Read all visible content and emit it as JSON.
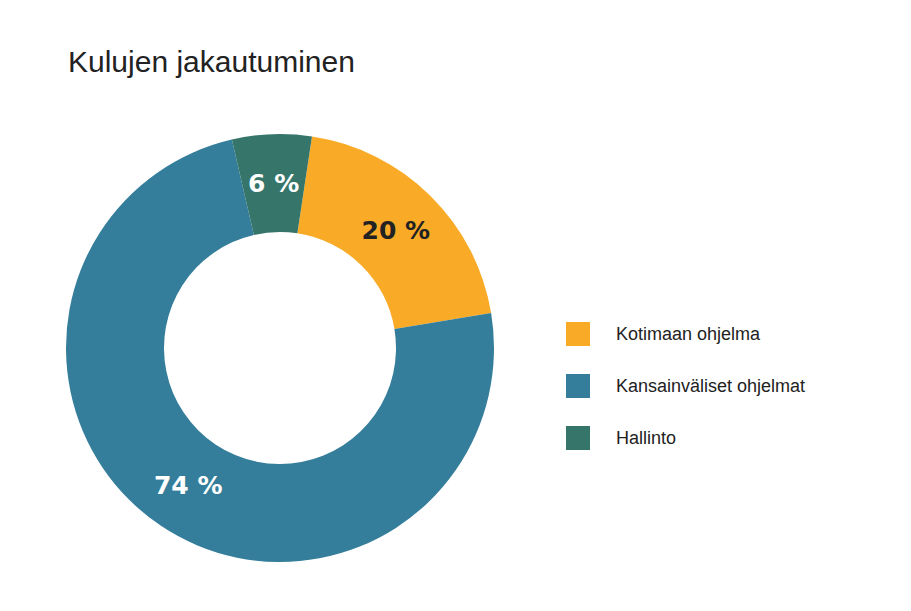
{
  "chart_data": {
    "type": "donut",
    "title": "Kulujen jakautuminen",
    "categories": [
      "Kotimaan ohjelma",
      "Kansainväliset ohjelmat",
      "Hallinto"
    ],
    "values": [
      20,
      74,
      6
    ],
    "value_labels": [
      "20 %",
      "74 %",
      "6 %"
    ],
    "colors": [
      "#f9ab28",
      "#347e9b",
      "#36756a"
    ],
    "data_labels": true,
    "legend": "right"
  }
}
